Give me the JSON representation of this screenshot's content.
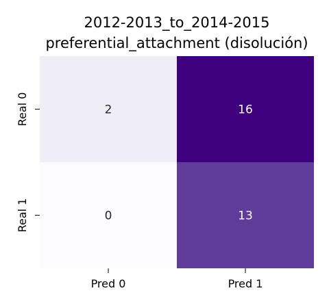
{
  "chart_data": {
    "type": "heatmap",
    "title_lines": [
      "2012-2013_to_2014-2015",
      "preferential_attachment (disolución)"
    ],
    "x_categories": [
      "Pred 0",
      "Pred 1"
    ],
    "y_categories": [
      "Real 0",
      "Real 1"
    ],
    "values": [
      [
        2,
        16
      ],
      [
        0,
        13
      ]
    ],
    "colormap": "purples",
    "colorbar": false,
    "low_color": "#fcfbfd",
    "high_color": "#3f007d",
    "light_text_color": "#ffffff",
    "dark_text_color": "#262626"
  }
}
